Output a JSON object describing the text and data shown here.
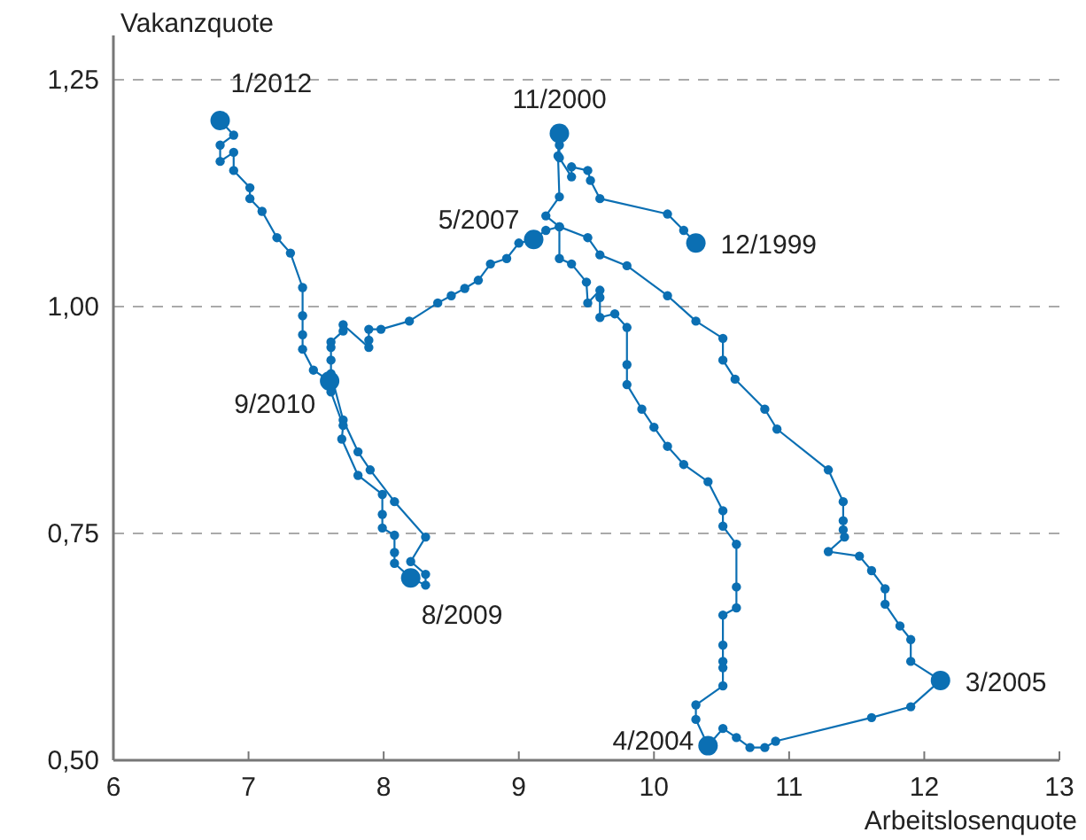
{
  "chart_data": {
    "type": "line",
    "xlabel": "Arbeitslosenquote",
    "ylabel": "Vakanzquote",
    "xlim": [
      6,
      13
    ],
    "xticks": [
      6,
      7,
      8,
      9,
      10,
      11,
      12,
      13
    ],
    "ylim": [
      0.5,
      1.25
    ],
    "yticks": [
      {
        "value": 0.5,
        "label": "0,50"
      },
      {
        "value": 0.75,
        "label": "0,75"
      },
      {
        "value": 1.0,
        "label": "1,00"
      },
      {
        "value": 1.25,
        "label": "1,25"
      }
    ],
    "grid": "y",
    "marker": "circle",
    "line_style": "solid",
    "series": [
      {
        "color": "#0b6fb3",
        "x": [
          10.31,
          10.22,
          10.1,
          9.6,
          9.53,
          9.51,
          9.39,
          9.39,
          9.3,
          9.3,
          9.3,
          9.29,
          9.3,
          9.2,
          9.3,
          9.3,
          9.39,
          9.5,
          9.51,
          9.6,
          9.6,
          9.6,
          9.71,
          9.8,
          9.8,
          9.8,
          9.91,
          10.0,
          10.1,
          10.22,
          10.4,
          10.51,
          10.51,
          10.61,
          10.61,
          10.61,
          10.51,
          10.51,
          10.51,
          10.51,
          10.51,
          10.31,
          10.31,
          10.4,
          10.51,
          10.61,
          10.71,
          10.82,
          10.9,
          11.61,
          11.9,
          12.12,
          11.9,
          11.9,
          11.82,
          11.71,
          11.71,
          11.61,
          11.52,
          11.29,
          11.41,
          11.4,
          11.4,
          11.4,
          11.29,
          10.91,
          10.82,
          10.6,
          10.51,
          10.51,
          10.31,
          10.1,
          9.8,
          9.6,
          9.51,
          9.3,
          9.2,
          9.11,
          9.0,
          8.91,
          8.79,
          8.7,
          8.6,
          8.5,
          8.4,
          8.19,
          7.98,
          7.89,
          7.89,
          7.89,
          7.7,
          7.7,
          7.61,
          7.61,
          7.61,
          7.61,
          7.7,
          7.81,
          7.9,
          8.08,
          8.31,
          8.2,
          8.31,
          8.31,
          8.2,
          8.08,
          8.08,
          8.08,
          7.99,
          7.99,
          7.99,
          7.81,
          7.69,
          7.7,
          7.61,
          7.6,
          7.48,
          7.4,
          7.4,
          7.4,
          7.4,
          7.31,
          7.21,
          7.1,
          7.01,
          7.01,
          6.89,
          6.89,
          6.79,
          6.79,
          6.89,
          6.79
        ],
        "values": [
          1.07,
          1.084,
          1.102,
          1.119,
          1.139,
          1.15,
          1.154,
          1.143,
          1.164,
          1.178,
          1.191,
          1.166,
          1.121,
          1.1,
          1.088,
          1.053,
          1.047,
          1.027,
          1.004,
          1.018,
          1.01,
          0.988,
          0.992,
          0.977,
          0.936,
          0.914,
          0.887,
          0.867,
          0.846,
          0.826,
          0.807,
          0.775,
          0.758,
          0.738,
          0.691,
          0.668,
          0.66,
          0.627,
          0.609,
          0.602,
          0.582,
          0.561,
          0.545,
          0.516,
          0.535,
          0.525,
          0.514,
          0.514,
          0.521,
          0.547,
          0.559,
          0.588,
          0.609,
          0.633,
          0.648,
          0.672,
          0.689,
          0.709,
          0.725,
          0.73,
          0.746,
          0.754,
          0.764,
          0.785,
          0.82,
          0.865,
          0.887,
          0.92,
          0.941,
          0.965,
          0.984,
          1.012,
          1.045,
          1.057,
          1.076,
          1.088,
          1.084,
          1.074,
          1.07,
          1.053,
          1.047,
          1.029,
          1.02,
          1.012,
          1.004,
          0.984,
          0.975,
          0.975,
          0.963,
          0.955,
          0.98,
          0.973,
          0.961,
          0.955,
          0.941,
          0.926,
          0.875,
          0.84,
          0.82,
          0.785,
          0.746,
          0.719,
          0.705,
          0.693,
          0.701,
          0.717,
          0.729,
          0.748,
          0.756,
          0.771,
          0.793,
          0.814,
          0.854,
          0.869,
          0.906,
          0.918,
          0.93,
          0.953,
          0.969,
          0.99,
          1.021,
          1.059,
          1.076,
          1.105,
          1.119,
          1.131,
          1.15,
          1.17,
          1.16,
          1.178,
          1.189,
          1.205
        ]
      }
    ],
    "annotations": [
      {
        "text": "12/1999",
        "x": 10.31,
        "y": 1.07
      },
      {
        "text": "11/2000",
        "x": 9.3,
        "y": 1.191
      },
      {
        "text": "4/2004",
        "x": 10.4,
        "y": 0.516
      },
      {
        "text": "3/2005",
        "x": 12.12,
        "y": 0.588
      },
      {
        "text": "5/2007",
        "x": 9.11,
        "y": 1.074
      },
      {
        "text": "8/2009",
        "x": 8.2,
        "y": 0.701
      },
      {
        "text": "9/2010",
        "x": 7.6,
        "y": 0.918
      },
      {
        "text": "1/2012",
        "x": 6.79,
        "y": 1.205
      }
    ]
  }
}
